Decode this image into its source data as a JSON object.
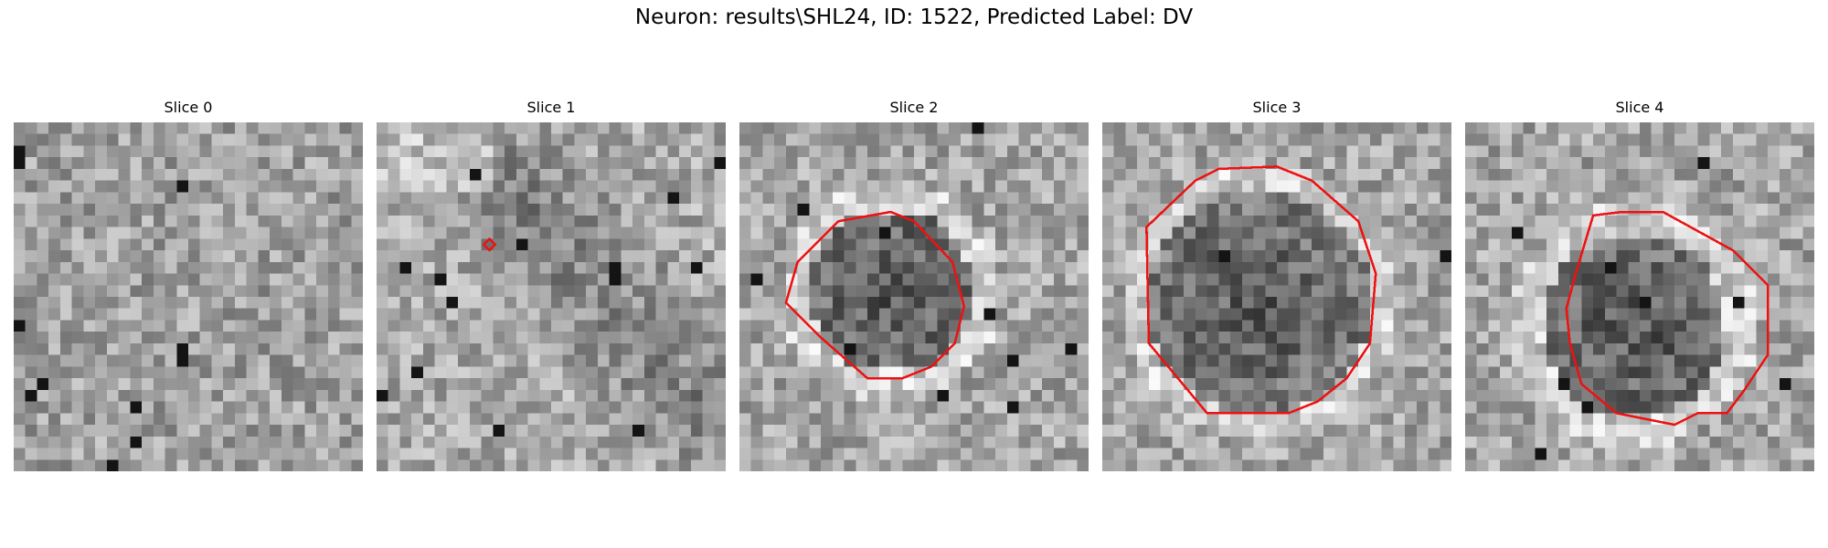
{
  "figure": {
    "title": "Neuron: results\\SHL24, ID: 1522, Predicted Label: DV"
  },
  "panels": [
    {
      "title": "Slice 0",
      "has_contour": false
    },
    {
      "title": "Slice 1",
      "has_contour": true
    },
    {
      "title": "Slice 2",
      "has_contour": true
    },
    {
      "title": "Slice 3",
      "has_contour": true
    },
    {
      "title": "Slice 4",
      "has_contour": true
    }
  ],
  "contour_color": "#ee1111",
  "colormap": "gray"
}
